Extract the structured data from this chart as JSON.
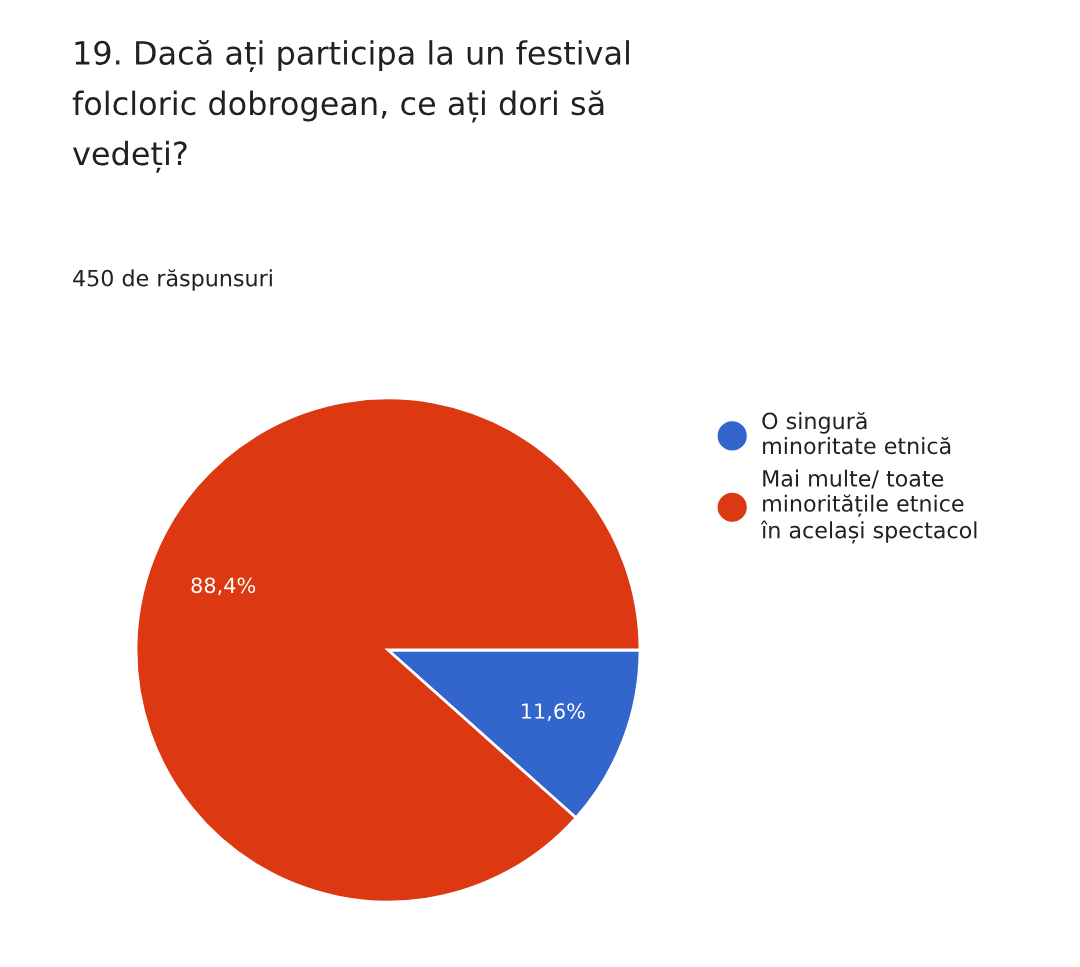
{
  "chart_data": {
    "type": "pie",
    "title": "19. Dacă ați participa la un festival\nfolcloric dobrogean, ce ați dori să\nvedeți?",
    "subtitle": "450 de răspunsuri",
    "categories": [
      "O singură\nminoritate etnică",
      "Mai multe/ toate\nminoritățile etnice\nîn același spectacol"
    ],
    "values": [
      11.6,
      88.4
    ],
    "colors": [
      "#3366cc",
      "#dc3912"
    ],
    "value_labels": [
      "11,6%",
      "88,4%"
    ],
    "legend": "right"
  }
}
